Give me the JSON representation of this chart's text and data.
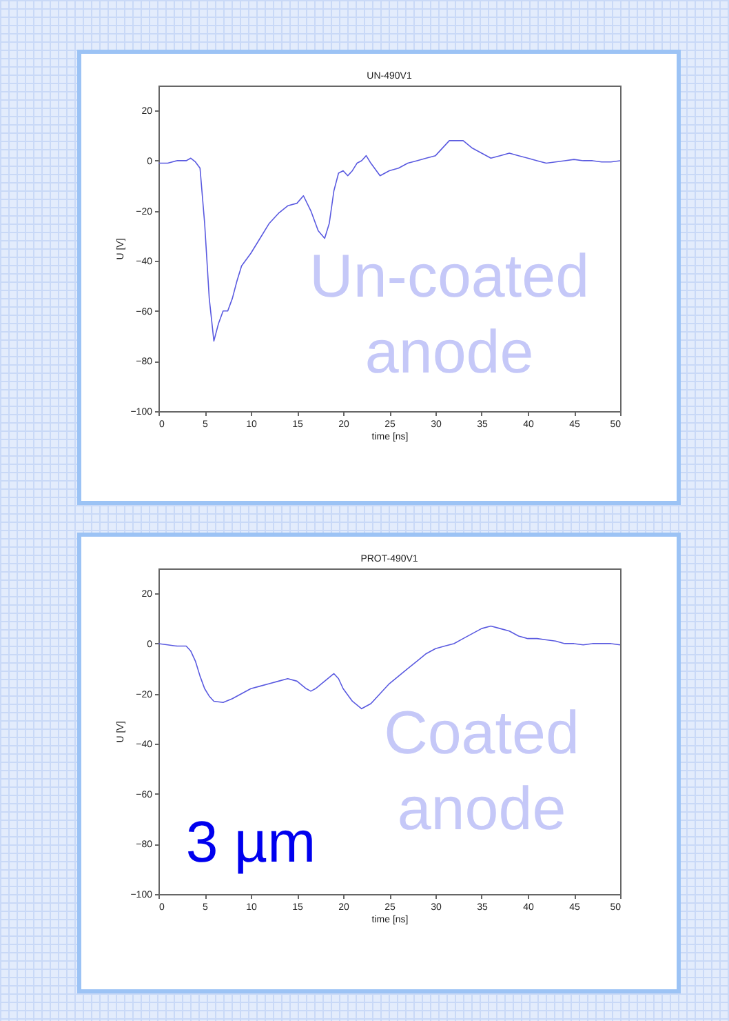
{
  "chart_data": [
    {
      "type": "line",
      "title": "UN-490V1",
      "xlabel": "time [ns]",
      "ylabel": "U [V]",
      "color": "#5a5ae0",
      "grid": false,
      "xlim": [
        0,
        50
      ],
      "ylim": [
        -100,
        30
      ],
      "xticks": [
        0,
        5,
        10,
        15,
        20,
        25,
        30,
        35,
        40,
        45,
        50
      ],
      "yticks": [
        -100,
        -80,
        -60,
        -40,
        -20,
        0,
        20
      ],
      "x": [
        0,
        1,
        2,
        3,
        3.5,
        4,
        4.5,
        5,
        5.5,
        6,
        6.5,
        7,
        7.5,
        8,
        8.5,
        9,
        10,
        11,
        12,
        13,
        14,
        15,
        15.7,
        16.5,
        17.3,
        18,
        18.5,
        19,
        19.5,
        20,
        20.5,
        21,
        21.5,
        22,
        22.5,
        23,
        24,
        25,
        26,
        27,
        28,
        29,
        30,
        31,
        31.5,
        32,
        33,
        34,
        35,
        36,
        37,
        38,
        39,
        40,
        41,
        42,
        43,
        44,
        45,
        46,
        47,
        48,
        49,
        50
      ],
      "values": [
        -1,
        -1,
        0,
        0,
        1,
        -0.5,
        -3,
        -25,
        -55,
        -72,
        -65,
        -60,
        -60,
        -55,
        -48,
        -42,
        -37,
        -31,
        -25,
        -21,
        -18,
        -17,
        -14,
        -20,
        -28,
        -31,
        -25,
        -12,
        -5,
        -4,
        -6,
        -4,
        -1,
        0,
        2,
        -1,
        -6,
        -4,
        -3,
        -1,
        0,
        1,
        2,
        6,
        8,
        8,
        8,
        5,
        3,
        1,
        2,
        3,
        2,
        1,
        0,
        -1,
        -0.5,
        0,
        0.5,
        0,
        0,
        -0.5,
        -0.5,
        0
      ],
      "annotations": [
        "Un-coated anode"
      ]
    },
    {
      "type": "line",
      "title": "PROT-490V1",
      "xlabel": "time [ns]",
      "ylabel": "U [V]",
      "color": "#5a5ae0",
      "grid": false,
      "xlim": [
        0,
        50
      ],
      "ylim": [
        -100,
        30
      ],
      "xticks": [
        0,
        5,
        10,
        15,
        20,
        25,
        30,
        35,
        40,
        45,
        50
      ],
      "yticks": [
        -100,
        -80,
        -60,
        -40,
        -20,
        0,
        20
      ],
      "x": [
        0,
        1,
        2,
        3,
        3.5,
        4,
        4.5,
        5,
        5.5,
        6,
        7,
        8,
        9,
        10,
        11,
        12,
        13,
        14,
        15,
        16,
        16.5,
        17,
        18,
        19,
        19.5,
        20,
        21,
        22,
        23,
        24,
        25,
        26,
        27,
        28,
        29,
        30,
        31,
        32,
        33,
        34,
        35,
        36,
        37,
        38,
        39,
        40,
        41,
        42,
        43,
        44,
        45,
        46,
        47,
        48,
        49,
        50
      ],
      "values": [
        0,
        -0.5,
        -1,
        -1,
        -3,
        -7,
        -13,
        -18,
        -21,
        -23,
        -23.5,
        -22,
        -20,
        -18,
        -17,
        -16,
        -15,
        -14,
        -15,
        -18,
        -19,
        -18,
        -15,
        -12,
        -14,
        -18,
        -23,
        -26,
        -24,
        -20,
        -16,
        -13,
        -10,
        -7,
        -4,
        -2,
        -1,
        0,
        2,
        4,
        6,
        7,
        6,
        5,
        3,
        2,
        2,
        1.5,
        1,
        0,
        0,
        -0.5,
        0,
        0,
        0,
        -0.5
      ],
      "annotations": [
        "3 µm",
        "Coated anode"
      ]
    }
  ]
}
